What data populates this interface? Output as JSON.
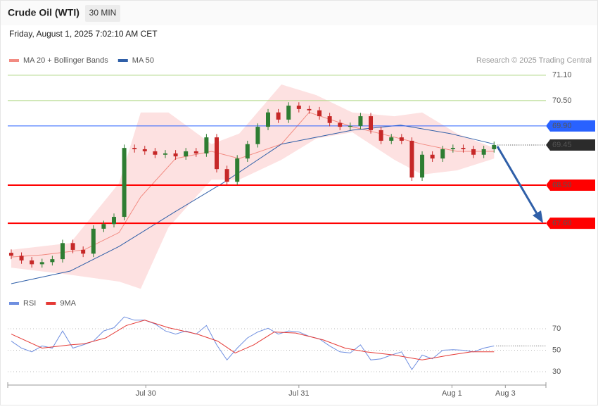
{
  "header": {
    "title": "Crude Oil (WTI)",
    "timeframe": "30 MIN",
    "date": "Friday, August 1, 2025 7:02:10 AM CET",
    "credit": "Research © 2025 Trading Central"
  },
  "chart_data": [
    {
      "type": "candlestick",
      "x": [
        0,
        1,
        2,
        3,
        4,
        5,
        6,
        7,
        8,
        9,
        10,
        11,
        12,
        13,
        14,
        15,
        16,
        17,
        18,
        19,
        20,
        21,
        22,
        23,
        24,
        25,
        26,
        27,
        28,
        29,
        30,
        31,
        32,
        33,
        34,
        35,
        36,
        37,
        38,
        39,
        40,
        41,
        42,
        43,
        44,
        45,
        46,
        47
      ],
      "open": [
        66.9,
        66.83,
        66.72,
        66.63,
        66.68,
        66.75,
        67.13,
        66.97,
        66.88,
        67.47,
        67.58,
        67.75,
        69.38,
        69.35,
        69.3,
        69.22,
        69.25,
        69.18,
        69.3,
        69.25,
        69.63,
        68.88,
        68.58,
        69.13,
        69.47,
        69.88,
        70.22,
        70.05,
        70.38,
        70.3,
        70.27,
        70.13,
        69.97,
        69.88,
        69.9,
        70.13,
        69.8,
        69.55,
        69.63,
        69.55,
        68.68,
        69.22,
        69.13,
        69.35,
        69.38,
        69.35,
        69.22,
        69.35
      ],
      "high": [
        66.98,
        66.91,
        66.8,
        66.76,
        66.83,
        67.21,
        67.21,
        67.05,
        67.55,
        67.66,
        67.83,
        69.46,
        69.46,
        69.43,
        69.38,
        69.33,
        69.33,
        69.38,
        69.38,
        69.71,
        69.71,
        68.96,
        69.21,
        69.55,
        69.96,
        70.3,
        70.3,
        70.46,
        70.46,
        70.38,
        70.35,
        70.21,
        70.05,
        69.98,
        70.21,
        70.21,
        69.88,
        69.71,
        69.71,
        69.63,
        69.3,
        69.3,
        69.43,
        69.46,
        69.46,
        69.43,
        69.43,
        69.53
      ],
      "low": [
        66.75,
        66.64,
        66.55,
        66.55,
        66.6,
        66.67,
        66.89,
        66.8,
        66.8,
        67.39,
        67.5,
        67.67,
        69.27,
        69.22,
        69.14,
        69.14,
        69.1,
        69.1,
        69.17,
        69.17,
        68.8,
        68.5,
        68.5,
        69.05,
        69.39,
        69.8,
        69.97,
        69.97,
        70.22,
        70.19,
        70.05,
        69.89,
        69.8,
        69.8,
        69.82,
        69.72,
        69.47,
        69.47,
        69.47,
        68.6,
        68.6,
        69.05,
        69.05,
        69.27,
        69.27,
        69.14,
        69.14,
        69.27
      ],
      "close": [
        66.83,
        66.72,
        66.63,
        66.68,
        66.75,
        67.13,
        66.97,
        66.88,
        67.47,
        67.58,
        67.75,
        69.38,
        69.35,
        69.3,
        69.22,
        69.25,
        69.18,
        69.3,
        69.25,
        69.63,
        68.88,
        68.58,
        69.13,
        69.47,
        69.88,
        70.22,
        70.05,
        70.38,
        70.3,
        70.27,
        70.13,
        69.97,
        69.88,
        69.9,
        70.13,
        69.8,
        69.55,
        69.63,
        69.55,
        68.68,
        69.22,
        69.13,
        69.35,
        69.38,
        69.35,
        69.22,
        69.35,
        69.45
      ],
      "up_color": "#2e7d32",
      "down_color": "#c62828",
      "xlim": [
        -0.34,
        52.05
      ],
      "ylim": [
        65.97,
        71.38
      ],
      "bands": {
        "color": "#fde1e1",
        "x": [
          0,
          5.75,
          10.5,
          12.6,
          15.3,
          19.5,
          22.2,
          26.3,
          29.7,
          33.2,
          37.3,
          40,
          43.4,
          47
        ],
        "upper": [
          66.97,
          67.13,
          68.55,
          70.22,
          70.22,
          69.47,
          69.72,
          70.88,
          70.63,
          70.22,
          70.13,
          70.22,
          69.72,
          69.38
        ],
        "lower": [
          66.55,
          66.38,
          66.22,
          66.05,
          67.5,
          68.63,
          68.63,
          69.1,
          69.6,
          69.75,
          69.1,
          68.75,
          68.85,
          69.13
        ]
      },
      "series": [
        {
          "name": "MA 20 + Bollinger Bands",
          "color": "#f28b82",
          "x": [
            0,
            3,
            7.1,
            10.5,
            12.6,
            16,
            19.5,
            22.2,
            26.3,
            29,
            33.2,
            35.9,
            40,
            43.4,
            47
          ],
          "values": [
            66.8,
            66.85,
            66.97,
            67.38,
            68.22,
            69.13,
            69.3,
            69.13,
            69.47,
            70.22,
            69.88,
            69.72,
            69.47,
            69.3,
            69.3
          ]
        },
        {
          "name": "MA 50",
          "color": "#2f5fa8",
          "x": [
            0,
            5.75,
            10.5,
            16,
            20.8,
            26.3,
            33.2,
            37.9,
            42.7,
            47
          ],
          "values": [
            66.17,
            66.47,
            67.05,
            67.88,
            68.58,
            69.47,
            69.8,
            69.92,
            69.72,
            69.47
          ]
        }
      ],
      "levels": [
        {
          "value": 71.1,
          "label": "71.10",
          "color": "#aed581",
          "text_color": "#7cb342",
          "width": 1,
          "box": false
        },
        {
          "value": 70.5,
          "label": "70.50",
          "color": "#aed581",
          "text_color": "#7cb342",
          "width": 1,
          "box": false
        },
        {
          "value": 69.9,
          "label": "69.90",
          "color": "#2962ff",
          "text_color": "#ffffff",
          "width": 1,
          "box": true
        },
        {
          "value": 69.45,
          "label": "69.45",
          "color": "#2b2b2b",
          "text_color": "#ffffff",
          "width": 1,
          "box": true,
          "dotted": true,
          "from_last": true
        },
        {
          "value": 68.5,
          "label": "68.50",
          "color": "#ff0000",
          "text_color": "#ffffff",
          "width": 2,
          "box": true
        },
        {
          "value": 67.6,
          "label": "67.60",
          "color": "#ff0000",
          "text_color": "#ffffff",
          "width": 2,
          "box": true
        }
      ]
    },
    {
      "type": "line",
      "xlim": [
        -0.34,
        52.05
      ],
      "ylim": [
        18.9,
        87.7
      ],
      "yticks": [
        30,
        50,
        70
      ],
      "grid": true,
      "xticks": [
        {
          "value": 13.1,
          "label": "Jul 30"
        },
        {
          "value": 28,
          "label": "Jul 31"
        },
        {
          "value": 42.9,
          "label": "Aug 1"
        },
        {
          "value": 48.1,
          "label": "Aug 3"
        }
      ],
      "series": [
        {
          "name": "RSI",
          "color": "#6f8fe0",
          "x": [
            0,
            1,
            2,
            3,
            4,
            5,
            6,
            7,
            8,
            9,
            10,
            11,
            12,
            13,
            14,
            15,
            16,
            17,
            18,
            19,
            20,
            21,
            22,
            23,
            24,
            25,
            26,
            27,
            28,
            29,
            30,
            31,
            32,
            33,
            34,
            35,
            36,
            37,
            38,
            39,
            40,
            41,
            42,
            43,
            44,
            45,
            46,
            47
          ],
          "values": [
            58.5,
            52,
            48.5,
            54,
            52,
            68,
            52,
            55,
            58.5,
            68,
            71,
            81,
            78,
            78,
            74.5,
            68,
            65,
            68,
            65,
            73,
            55,
            41,
            52,
            61.5,
            67,
            70.5,
            65,
            68,
            67,
            63,
            60.5,
            54,
            48.5,
            47.5,
            55,
            41,
            42,
            45.5,
            48.5,
            32,
            45.5,
            42,
            50,
            50.5,
            50,
            48.5,
            52,
            54
          ]
        },
        {
          "name": "9MA",
          "color": "#e53935",
          "x": [
            0,
            3,
            5.75,
            7.1,
            9.2,
            11.2,
            13,
            15.3,
            18.1,
            20.1,
            21.8,
            23.6,
            25.6,
            27.7,
            30.4,
            32.5,
            34.5,
            37.3,
            40,
            42.7,
            44.8,
            47
          ],
          "values": [
            65,
            52,
            55,
            56,
            61.5,
            73,
            78,
            71,
            65,
            58.5,
            47.5,
            55,
            67,
            66,
            59.5,
            52,
            48.5,
            45.5,
            41,
            45.5,
            48.5,
            48.5
          ]
        }
      ]
    }
  ]
}
